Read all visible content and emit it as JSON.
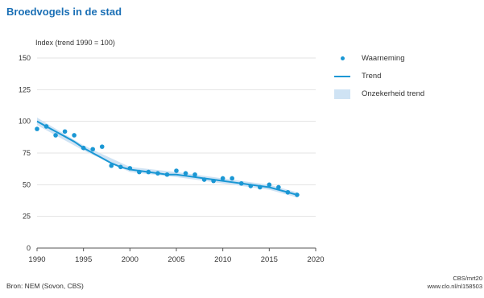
{
  "chart_data": {
    "type": "line",
    "title": "Broedvogels in de stad",
    "ylabel": "Index (trend 1990 = 100)",
    "xlabel": "",
    "xlim": [
      1990,
      2020
    ],
    "ylim": [
      0,
      150
    ],
    "xticks": [
      1990,
      1995,
      2000,
      2005,
      2010,
      2015,
      2020
    ],
    "yticks": [
      0,
      25,
      50,
      75,
      100,
      125,
      150
    ],
    "grid": true,
    "legend_position": "right",
    "series": [
      {
        "name": "Waarneming",
        "kind": "scatter",
        "color": "#1a97d4",
        "x": [
          1990,
          1991,
          1992,
          1993,
          1994,
          1995,
          1996,
          1997,
          1998,
          1999,
          2000,
          2001,
          2002,
          2003,
          2004,
          2005,
          2006,
          2007,
          2008,
          2009,
          2010,
          2011,
          2012,
          2013,
          2014,
          2015,
          2016,
          2017,
          2018
        ],
        "values": [
          94,
          96,
          89,
          92,
          89,
          79,
          78,
          80,
          65,
          64,
          63,
          60,
          60,
          59,
          58,
          61,
          59,
          58,
          54,
          53,
          55,
          55,
          51,
          49,
          48,
          50,
          48,
          44,
          42
        ]
      },
      {
        "name": "Trend",
        "kind": "line",
        "color": "#1a97d4",
        "x": [
          1990,
          1991,
          1992,
          1993,
          1994,
          1995,
          1996,
          1997,
          1998,
          1999,
          2000,
          2001,
          2002,
          2003,
          2004,
          2005,
          2006,
          2007,
          2008,
          2009,
          2010,
          2011,
          2012,
          2013,
          2014,
          2015,
          2016,
          2017,
          2018
        ],
        "values": [
          100,
          96,
          92,
          88,
          84,
          79,
          75,
          71,
          67,
          64,
          62,
          61,
          60,
          59,
          58,
          58,
          57,
          56,
          55,
          54,
          53,
          52,
          51,
          50,
          49,
          48,
          46,
          44,
          42
        ]
      },
      {
        "name": "Onzekerheid trend",
        "kind": "band",
        "color": "#cfe3f4",
        "x": [
          1990,
          1995,
          2000,
          2005,
          2010,
          2015,
          2018
        ],
        "lower": [
          97,
          77,
          60,
          56,
          51,
          46,
          40
        ],
        "upper": [
          103,
          81,
          64,
          60,
          55,
          50,
          44
        ]
      }
    ]
  },
  "source": "Bron: NEM (Sovon, CBS)",
  "credit": [
    "CBS/mrt20",
    "www.clo.nl/nl158503"
  ]
}
